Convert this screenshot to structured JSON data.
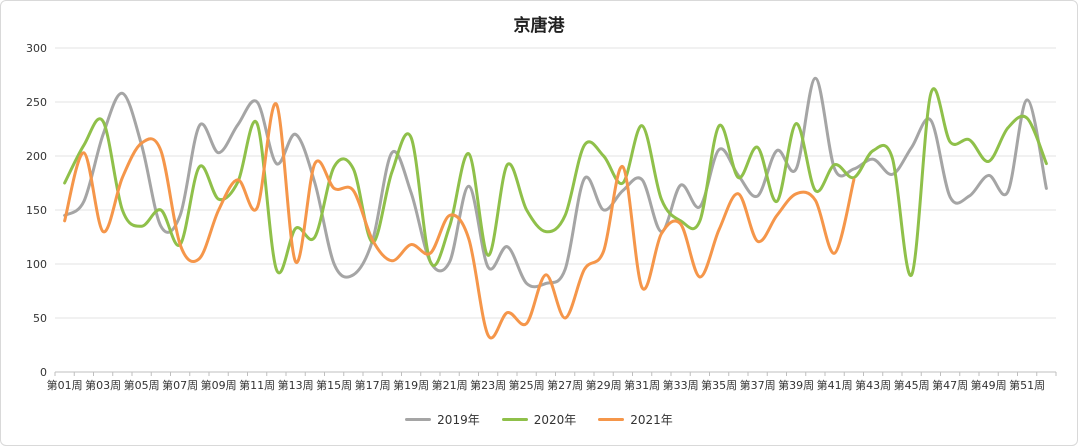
{
  "chart_data": {
    "type": "line",
    "title": "京唐港",
    "xlabel": "",
    "ylabel": "",
    "ylim": [
      0,
      300
    ],
    "yticks": [
      0,
      50,
      100,
      150,
      200,
      250,
      300
    ],
    "grid": true,
    "legend_position": "bottom",
    "categories": [
      "第01周",
      "第02周",
      "第03周",
      "第04周",
      "第05周",
      "第06周",
      "第07周",
      "第08周",
      "第09周",
      "第10周",
      "第11周",
      "第12周",
      "第13周",
      "第14周",
      "第15周",
      "第16周",
      "第17周",
      "第18周",
      "第19周",
      "第20周",
      "第21周",
      "第22周",
      "第23周",
      "第24周",
      "第25周",
      "第26周",
      "第27周",
      "第28周",
      "第29周",
      "第30周",
      "第31周",
      "第32周",
      "第33周",
      "第34周",
      "第35周",
      "第36周",
      "第37周",
      "第38周",
      "第39周",
      "第40周",
      "第41周",
      "第42周",
      "第43周",
      "第44周",
      "第45周",
      "第46周",
      "第47周",
      "第48周",
      "第49周",
      "第50周",
      "第51周",
      "第52周"
    ],
    "tick_labels": [
      "第01周",
      "第03周",
      "第05周",
      "第07周",
      "第09周",
      "第11周",
      "第13周",
      "第15周",
      "第17周",
      "第19周",
      "第21周",
      "第23周",
      "第25周",
      "第27周",
      "第29周",
      "第31周",
      "第33周",
      "第35周",
      "第37周",
      "第39周",
      "第41周",
      "第43周",
      "第45周",
      "第47周",
      "第49周",
      "第51周"
    ],
    "series": [
      {
        "name": "2019年",
        "color": "#a5a5a5",
        "values": [
          145,
          158,
          220,
          258,
          210,
          135,
          145,
          228,
          203,
          229,
          250,
          193,
          220,
          175,
          100,
          90,
          122,
          203,
          166,
          102,
          102,
          172,
          97,
          116,
          82,
          82,
          95,
          179,
          150,
          168,
          178,
          130,
          173,
          153,
          206,
          182,
          163,
          205,
          188,
          272,
          188,
          188,
          197,
          183,
          208,
          233,
          162,
          163,
          182,
          167,
          252,
          170
        ]
      },
      {
        "name": "2020年",
        "color": "#8fc04a",
        "values": [
          175,
          210,
          232,
          150,
          135,
          150,
          118,
          190,
          160,
          176,
          230,
          95,
          133,
          125,
          190,
          188,
          120,
          185,
          217,
          102,
          135,
          202,
          108,
          192,
          150,
          130,
          145,
          210,
          200,
          175,
          228,
          160,
          140,
          140,
          228,
          180,
          208,
          158,
          230,
          168,
          192,
          180,
          205,
          198,
          90,
          258,
          213,
          215,
          195,
          226,
          235,
          193
        ]
      },
      {
        "name": "2021年",
        "color": "#f5964a",
        "values": [
          140,
          203,
          130,
          180,
          212,
          205,
          118,
          105,
          150,
          178,
          152,
          248,
          102,
          193,
          170,
          168,
          122,
          103,
          118,
          110,
          145,
          123,
          34,
          55,
          45,
          90,
          50,
          95,
          112,
          190,
          78,
          128,
          137,
          88,
          132,
          165,
          121,
          145,
          165,
          159,
          110,
          178,
          null,
          null,
          null,
          null,
          null,
          null,
          null,
          null,
          null,
          null
        ]
      }
    ]
  }
}
